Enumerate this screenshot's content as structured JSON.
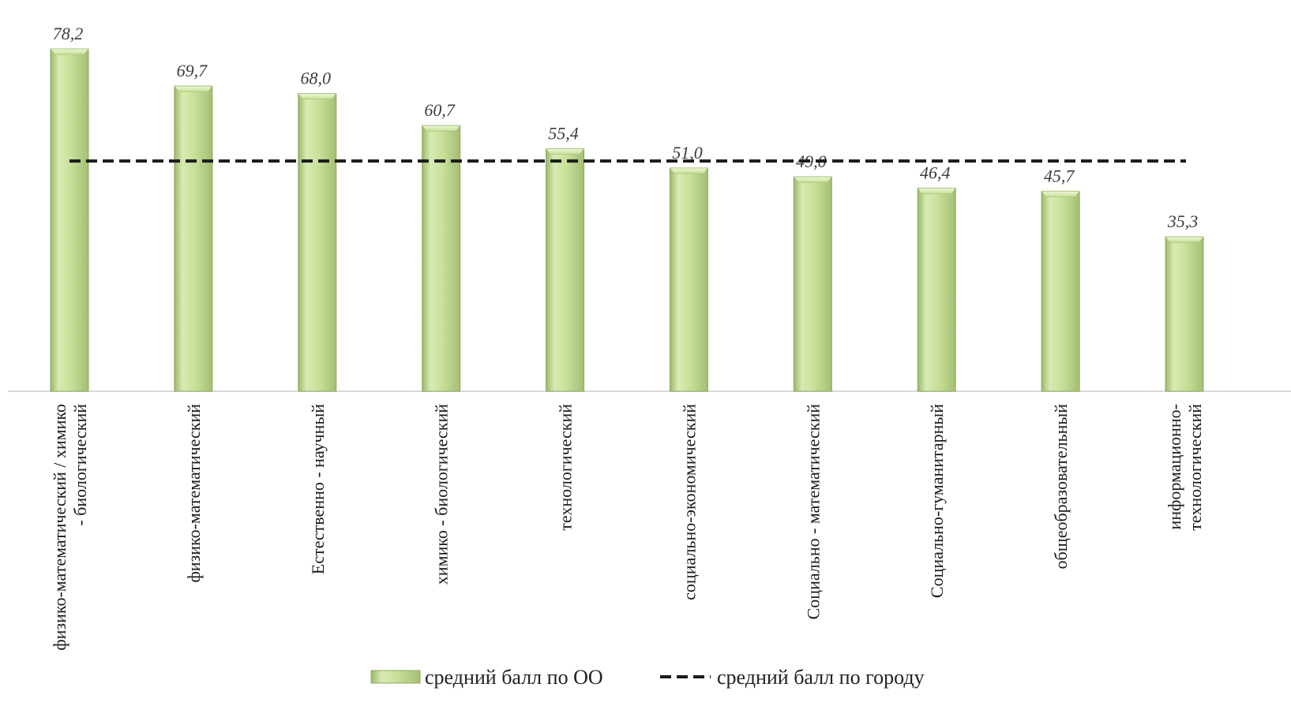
{
  "chart_data": {
    "type": "bar",
    "categories": [
      [
        "физико-математический / химико",
        "- биологический"
      ],
      [
        "физико-математический"
      ],
      [
        "Естественно - научный"
      ],
      [
        "химико - биологический"
      ],
      [
        "технологический"
      ],
      [
        "социально-экономический"
      ],
      [
        "Социально - математический"
      ],
      [
        "Социально-гуманитарный"
      ],
      [
        "общеобразовательный"
      ],
      [
        "информационно-",
        "технологический"
      ]
    ],
    "series": [
      {
        "name": "средний балл по ОО",
        "values": [
          78.2,
          69.7,
          68.0,
          60.7,
          55.4,
          51.0,
          49.0,
          46.4,
          45.7,
          35.3
        ],
        "value_labels": [
          "78,2",
          "69,7",
          "68,0",
          "60,7",
          "55,4",
          "51,0",
          "49,0",
          "46,4",
          "45,7",
          "35,3"
        ],
        "color": "#c5de96"
      }
    ],
    "reference_line": {
      "name": "средний балл по городу",
      "value": 52.6,
      "style": "dashed",
      "color": "#1a1a1a"
    },
    "ylim": [
      0,
      80
    ],
    "grid": false,
    "legend_position": "bottom",
    "title": "",
    "xlabel": "",
    "ylabel": ""
  }
}
